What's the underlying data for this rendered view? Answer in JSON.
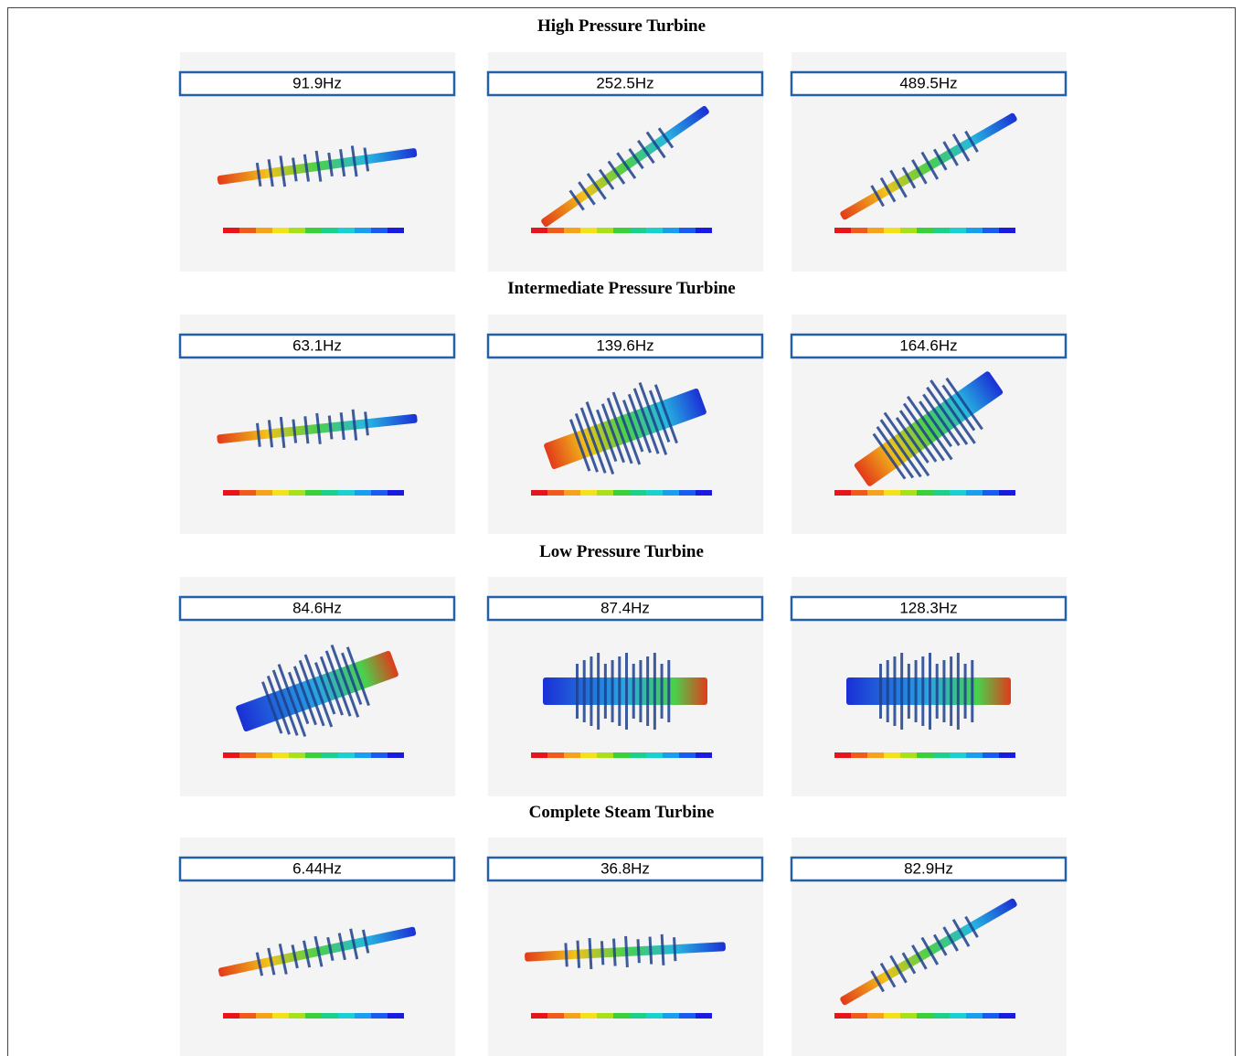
{
  "sections": [
    {
      "title": "High Pressure Turbine",
      "panels": [
        {
          "label": "91.9Hz"
        },
        {
          "label": "252.5Hz"
        },
        {
          "label": "489.5Hz"
        }
      ]
    },
    {
      "title": "Intermediate Pressure Turbine",
      "panels": [
        {
          "label": "63.1Hz"
        },
        {
          "label": "139.6Hz"
        },
        {
          "label": "164.6Hz"
        }
      ]
    },
    {
      "title": "Low Pressure Turbine",
      "panels": [
        {
          "label": "84.6Hz"
        },
        {
          "label": "87.4Hz"
        },
        {
          "label": "128.3Hz"
        }
      ]
    },
    {
      "title": "Complete Steam Turbine",
      "panels": [
        {
          "label": "6.44Hz"
        },
        {
          "label": "36.8Hz"
        },
        {
          "label": "82.9Hz"
        }
      ]
    }
  ]
}
